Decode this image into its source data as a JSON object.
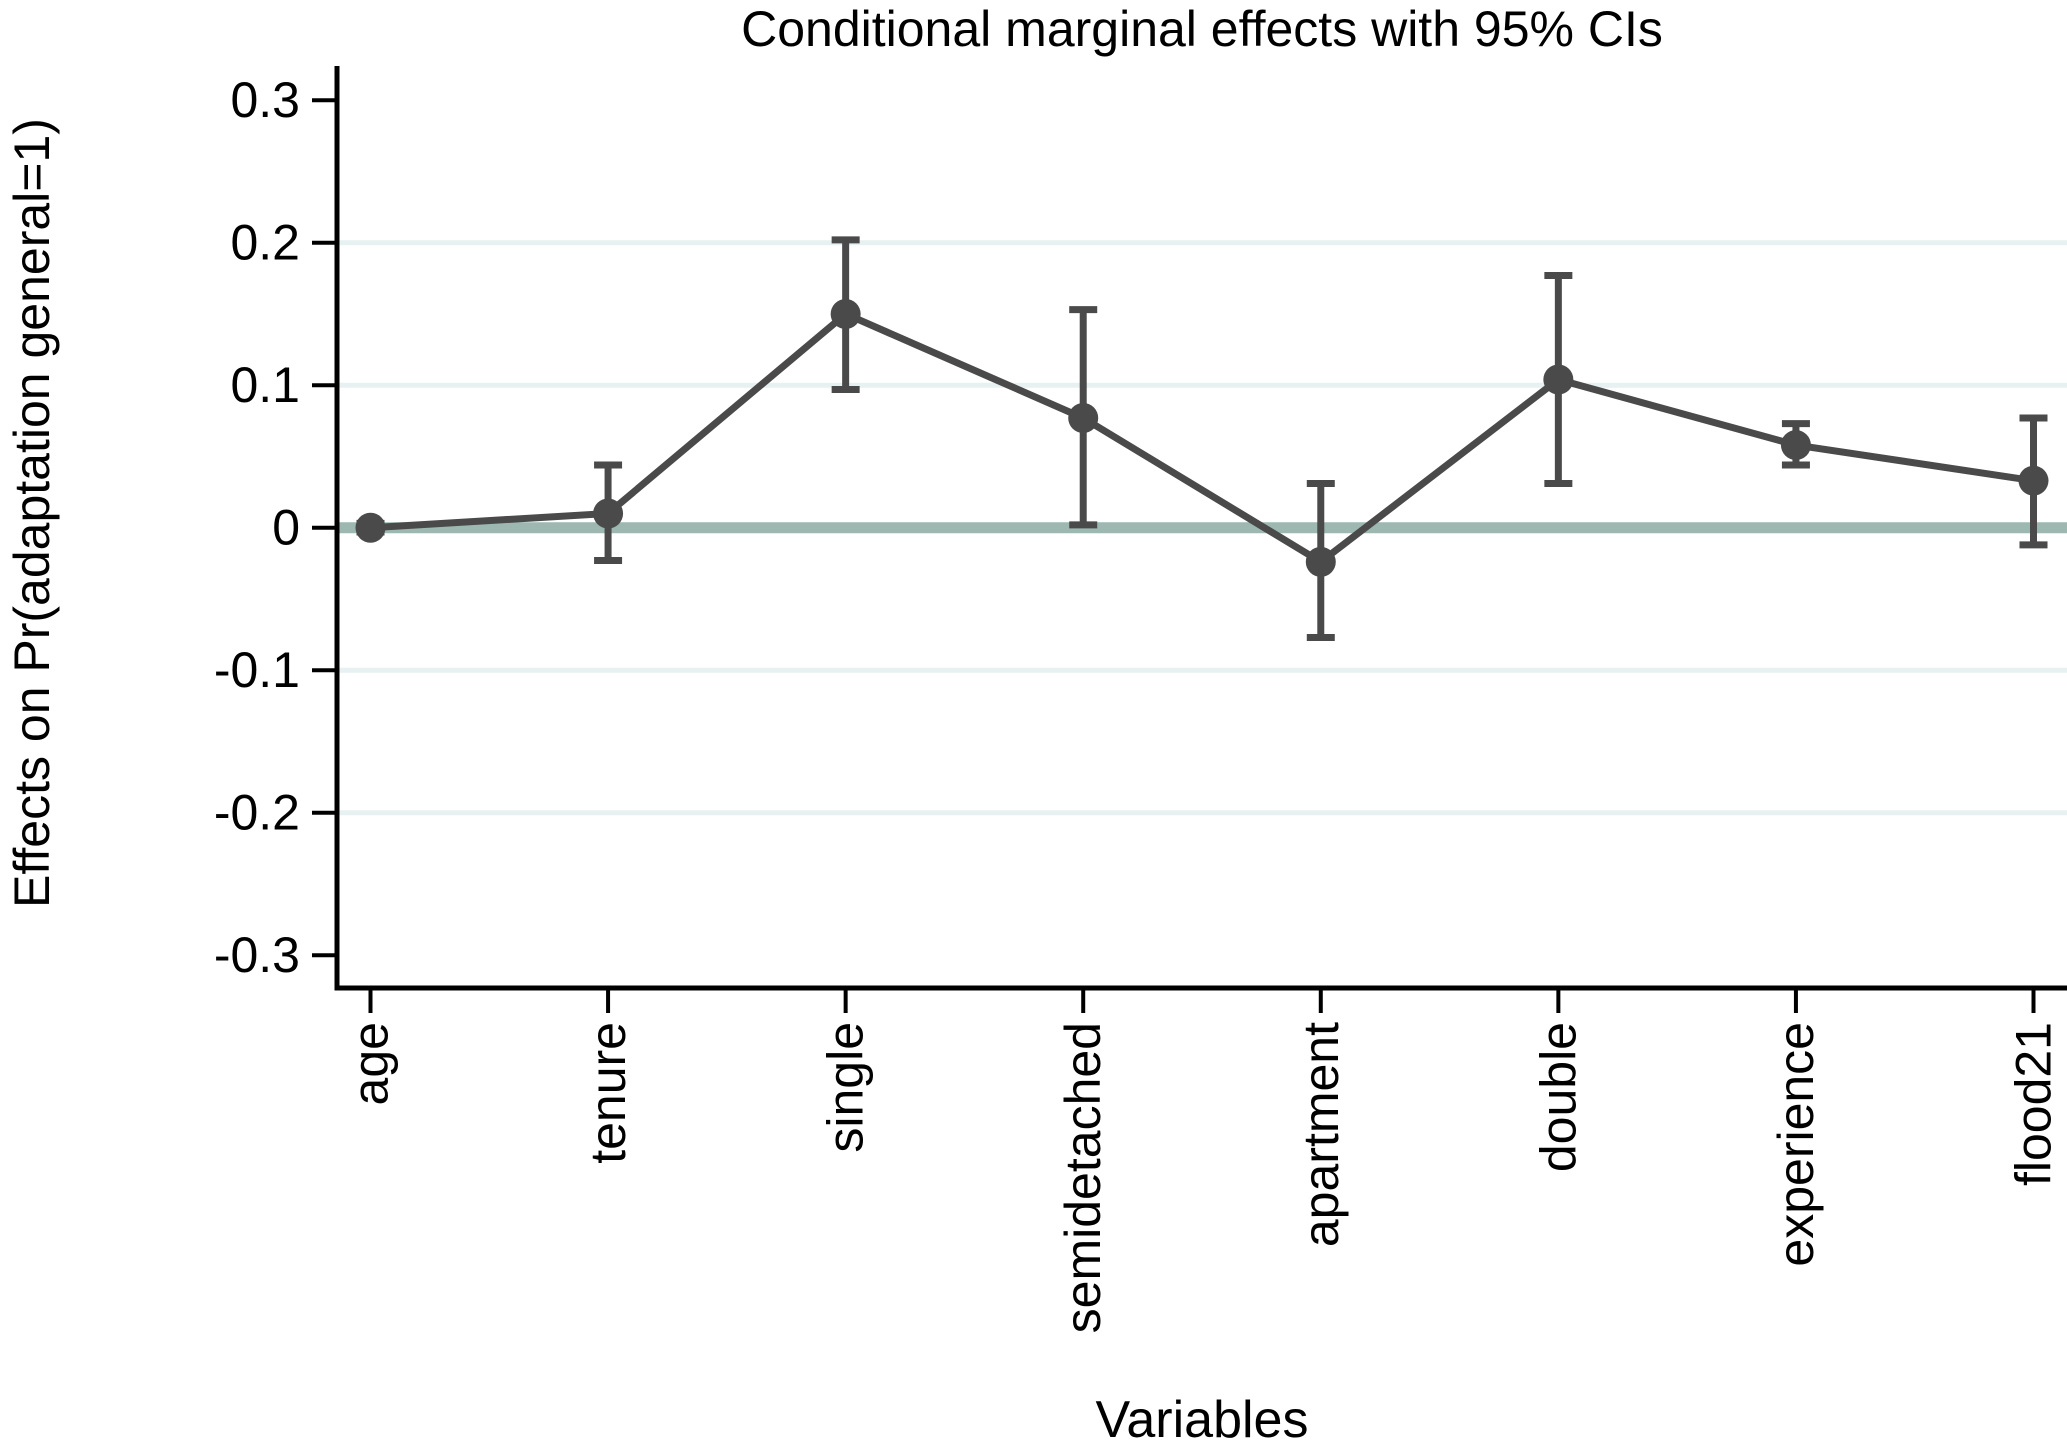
{
  "chart_data": {
    "type": "line",
    "title": "Conditional marginal effects with 95% CIs",
    "xlabel": "Variables",
    "ylabel": "Effects on Pr(adaptation general=1)",
    "categories": [
      "age",
      "tenure",
      "single",
      "semidetached",
      "apartment",
      "double",
      "experience",
      "flood21"
    ],
    "series": [
      {
        "name": "Conditional marginal effects",
        "values": [
          0.0,
          0.01,
          0.15,
          0.077,
          -0.024,
          0.104,
          0.058,
          0.033
        ],
        "ci_low": [
          -0.003,
          -0.023,
          0.097,
          0.002,
          -0.077,
          0.031,
          0.044,
          -0.012
        ],
        "ci_high": [
          0.003,
          0.044,
          0.202,
          0.153,
          0.031,
          0.177,
          0.073,
          0.077
        ]
      }
    ],
    "ci_level": "95%",
    "ylim": [
      -0.323,
      0.324
    ],
    "yticks": [
      0.3,
      0.2,
      0.1,
      0,
      -0.1,
      -0.2,
      -0.3
    ],
    "ytick_labels": [
      "0.3",
      "0.2",
      "0.1",
      "0",
      "-0.1",
      "-0.2",
      "-0.3"
    ],
    "grid_values": [
      0.2,
      0.1,
      -0.1,
      -0.2
    ],
    "zero_line": 0,
    "grid": "horizontal",
    "legend": "none",
    "colors": {
      "series": "#4a4a4a",
      "zero_line": "#9cb8b0",
      "gridline": "#e7f1f1",
      "axis": "#000000",
      "background": "#ffffff"
    }
  }
}
